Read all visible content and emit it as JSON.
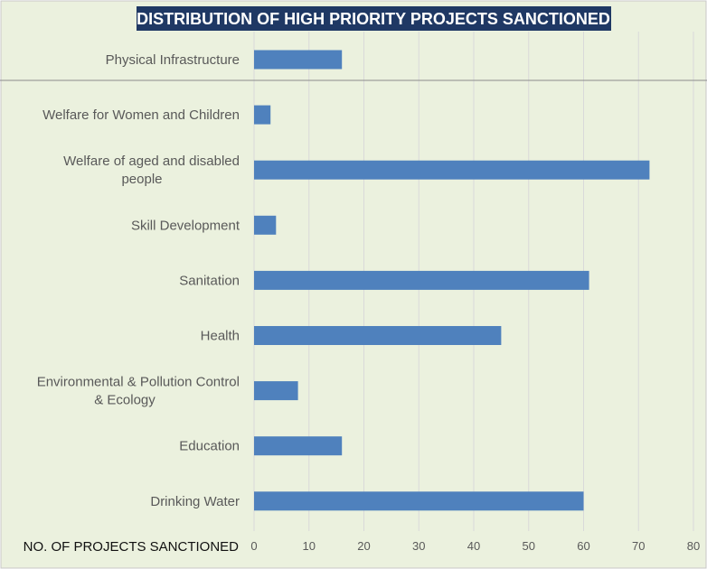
{
  "chart_data": {
    "type": "bar",
    "orientation": "horizontal",
    "title": "DISTRIBUTION OF HIGH PRIORITY PROJECTS SANCTIONED",
    "xlabel": "NO. OF PROJECTS SANCTIONED",
    "ylabel": "",
    "categories": [
      "Physical Infrastructure",
      "Welfare for Women and Children",
      "Welfare of aged and disabled people",
      "Skill Development",
      "Sanitation",
      "Health",
      "Environmental & Pollution Control & Ecology",
      "Education",
      "Drinking Water"
    ],
    "category_label_lines": [
      [
        "Physical Infrastructure"
      ],
      [
        "Welfare for Women and Children"
      ],
      [
        "Welfare of aged and disabled",
        "people"
      ],
      [
        "Skill Development"
      ],
      [
        "Sanitation"
      ],
      [
        "Health"
      ],
      [
        "Environmental & Pollution Control",
        "& Ecology"
      ],
      [
        "Education"
      ],
      [
        "Drinking Water"
      ]
    ],
    "values": [
      16,
      3,
      72,
      4,
      61,
      45,
      8,
      16,
      60
    ],
    "xlim": [
      0,
      80
    ],
    "xticks": [
      0,
      10,
      20,
      30,
      40,
      50,
      60,
      70,
      80
    ],
    "grid": "vertical",
    "legend": "none",
    "colors": {
      "bar": "#4f81bd",
      "background": "#ebf1de",
      "title_bg": "#1f3864",
      "grid": "#d9d9d9"
    }
  }
}
